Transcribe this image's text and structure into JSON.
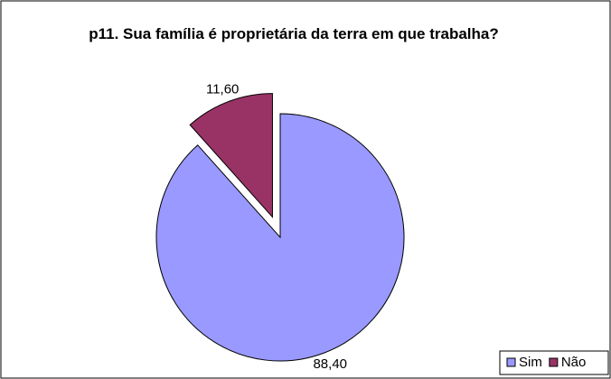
{
  "chart_data": {
    "type": "pie",
    "title": "p11. Sua família é proprietária da terra em que trabalha?",
    "categories": [
      "Sim",
      "Não"
    ],
    "values": [
      88.4,
      11.6
    ],
    "value_labels": [
      "88,40",
      "11,60"
    ],
    "colors": [
      "#9999ff",
      "#993366"
    ],
    "explode": [
      false,
      true
    ],
    "legend": "bottom-right"
  }
}
